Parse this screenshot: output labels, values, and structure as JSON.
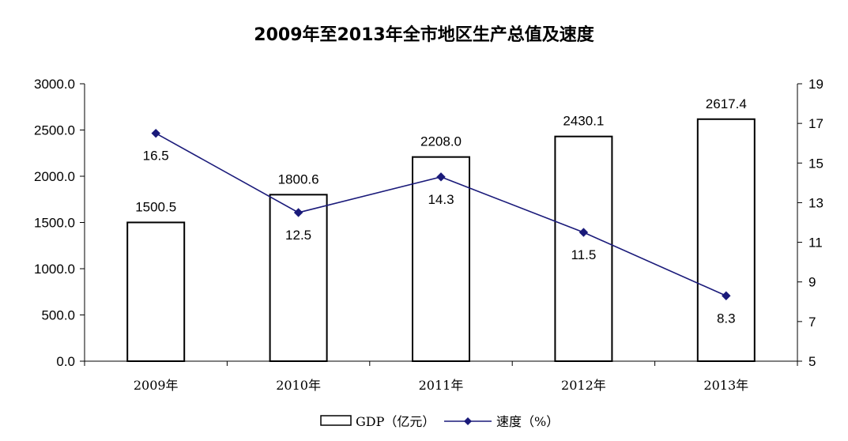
{
  "chart_data": {
    "type": "bar",
    "title": "2009年至2013年全市地区生产总值及速度",
    "categories": [
      "2009年",
      "2010年",
      "2011年",
      "2012年",
      "2013年"
    ],
    "series": [
      {
        "name": "GDP（亿元）",
        "type": "bar",
        "axis": "left",
        "values": [
          1500.5,
          1800.6,
          2208.0,
          2430.1,
          2617.4
        ],
        "labels": [
          "1500.5",
          "1800.6",
          "2208.0",
          "2430.1",
          "2617.4"
        ],
        "color": "#ffffff",
        "stroke": "#000000"
      },
      {
        "name": "速度（%）",
        "type": "line",
        "axis": "right",
        "values": [
          16.5,
          12.5,
          14.3,
          11.5,
          8.3
        ],
        "labels": [
          "16.5",
          "12.5",
          "14.3",
          "11.5",
          "8.3"
        ],
        "color": "#1a1a7a"
      }
    ],
    "y_left": {
      "min": 0,
      "max": 3000,
      "step": 500,
      "ticks": [
        "0.0",
        "500.0",
        "1000.0",
        "1500.0",
        "2000.0",
        "2500.0",
        "3000.0"
      ]
    },
    "y_right": {
      "min": 5,
      "max": 19,
      "step": 2,
      "ticks": [
        "5",
        "7",
        "9",
        "11",
        "13",
        "15",
        "17",
        "19"
      ]
    },
    "grid": false,
    "legend_position": "bottom"
  }
}
